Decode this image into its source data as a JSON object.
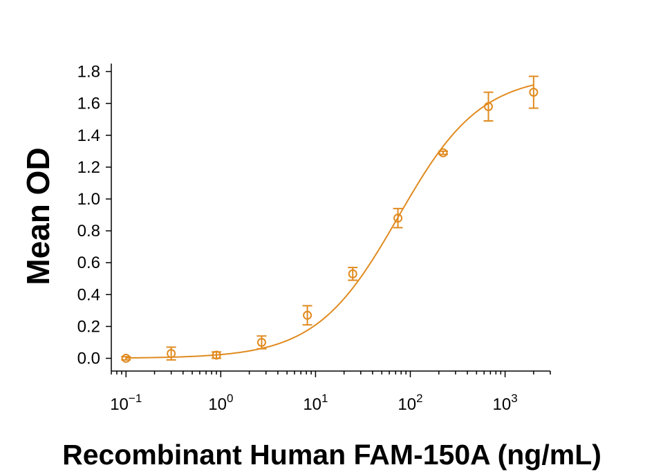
{
  "chart_data": {
    "type": "scatter",
    "title": "",
    "xlabel": "Recombinant Human FAM-150A (ng/mL)",
    "ylabel": "Mean OD",
    "x_scale": "log",
    "xlim": [
      0.07,
      3000
    ],
    "ylim": [
      -0.08,
      1.85
    ],
    "x_major_ticks": [
      0.1,
      1,
      10,
      100,
      1000
    ],
    "x_tick_labels": [
      {
        "base": "10",
        "exp": "−1"
      },
      {
        "base": "10",
        "exp": "0"
      },
      {
        "base": "10",
        "exp": "1"
      },
      {
        "base": "10",
        "exp": "2"
      },
      {
        "base": "10",
        "exp": "3"
      }
    ],
    "y_ticks": [
      0.0,
      0.2,
      0.4,
      0.6,
      0.8,
      1.0,
      1.2,
      1.4,
      1.6,
      1.8
    ],
    "y_tick_labels": [
      "0.0",
      "0.2",
      "0.4",
      "0.6",
      "0.8",
      "1.0",
      "1.2",
      "1.4",
      "1.6",
      "1.8"
    ],
    "grid": false,
    "color": "#E08A1E",
    "series": [
      {
        "x": [
          0.1,
          0.3,
          0.9,
          2.7,
          8.2,
          24.7,
          74,
          222,
          667,
          2000
        ],
        "y": [
          0.0,
          0.03,
          0.02,
          0.1,
          0.27,
          0.53,
          0.88,
          1.29,
          1.58,
          1.67
        ],
        "error": [
          0.01,
          0.04,
          0.02,
          0.04,
          0.06,
          0.04,
          0.06,
          0.01,
          0.09,
          0.1
        ]
      }
    ],
    "fit": {
      "model": "4PL",
      "bottom": 0.0,
      "top": 1.78,
      "ec50": 75,
      "hill": 1.0
    }
  }
}
